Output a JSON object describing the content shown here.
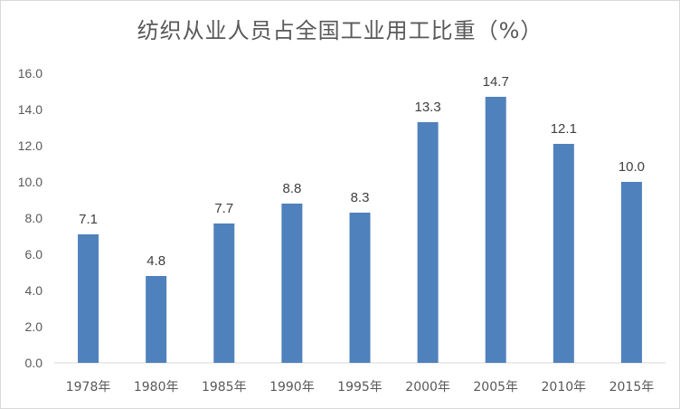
{
  "chart_data": {
    "type": "bar",
    "title": "纺织从业人员占全国工业用工比重（%）",
    "categories": [
      "1978年",
      "1980年",
      "1985年",
      "1990年",
      "1995年",
      "2000年",
      "2005年",
      "2010年",
      "2015年"
    ],
    "values": [
      7.1,
      4.8,
      7.7,
      8.8,
      8.3,
      13.3,
      14.7,
      12.1,
      10.0
    ],
    "data_labels": [
      "7.1",
      "4.8",
      "7.7",
      "8.8",
      "8.3",
      "13.3",
      "14.7",
      "12.1",
      "10.0"
    ],
    "y_ticks": [
      "0.0",
      "2.0",
      "4.0",
      "6.0",
      "8.0",
      "10.0",
      "12.0",
      "14.0",
      "16.0"
    ],
    "ylim": [
      0,
      16
    ],
    "xlabel": "",
    "ylabel": "",
    "grid": false,
    "legend": "none",
    "bar_color": "#4f81bd"
  }
}
